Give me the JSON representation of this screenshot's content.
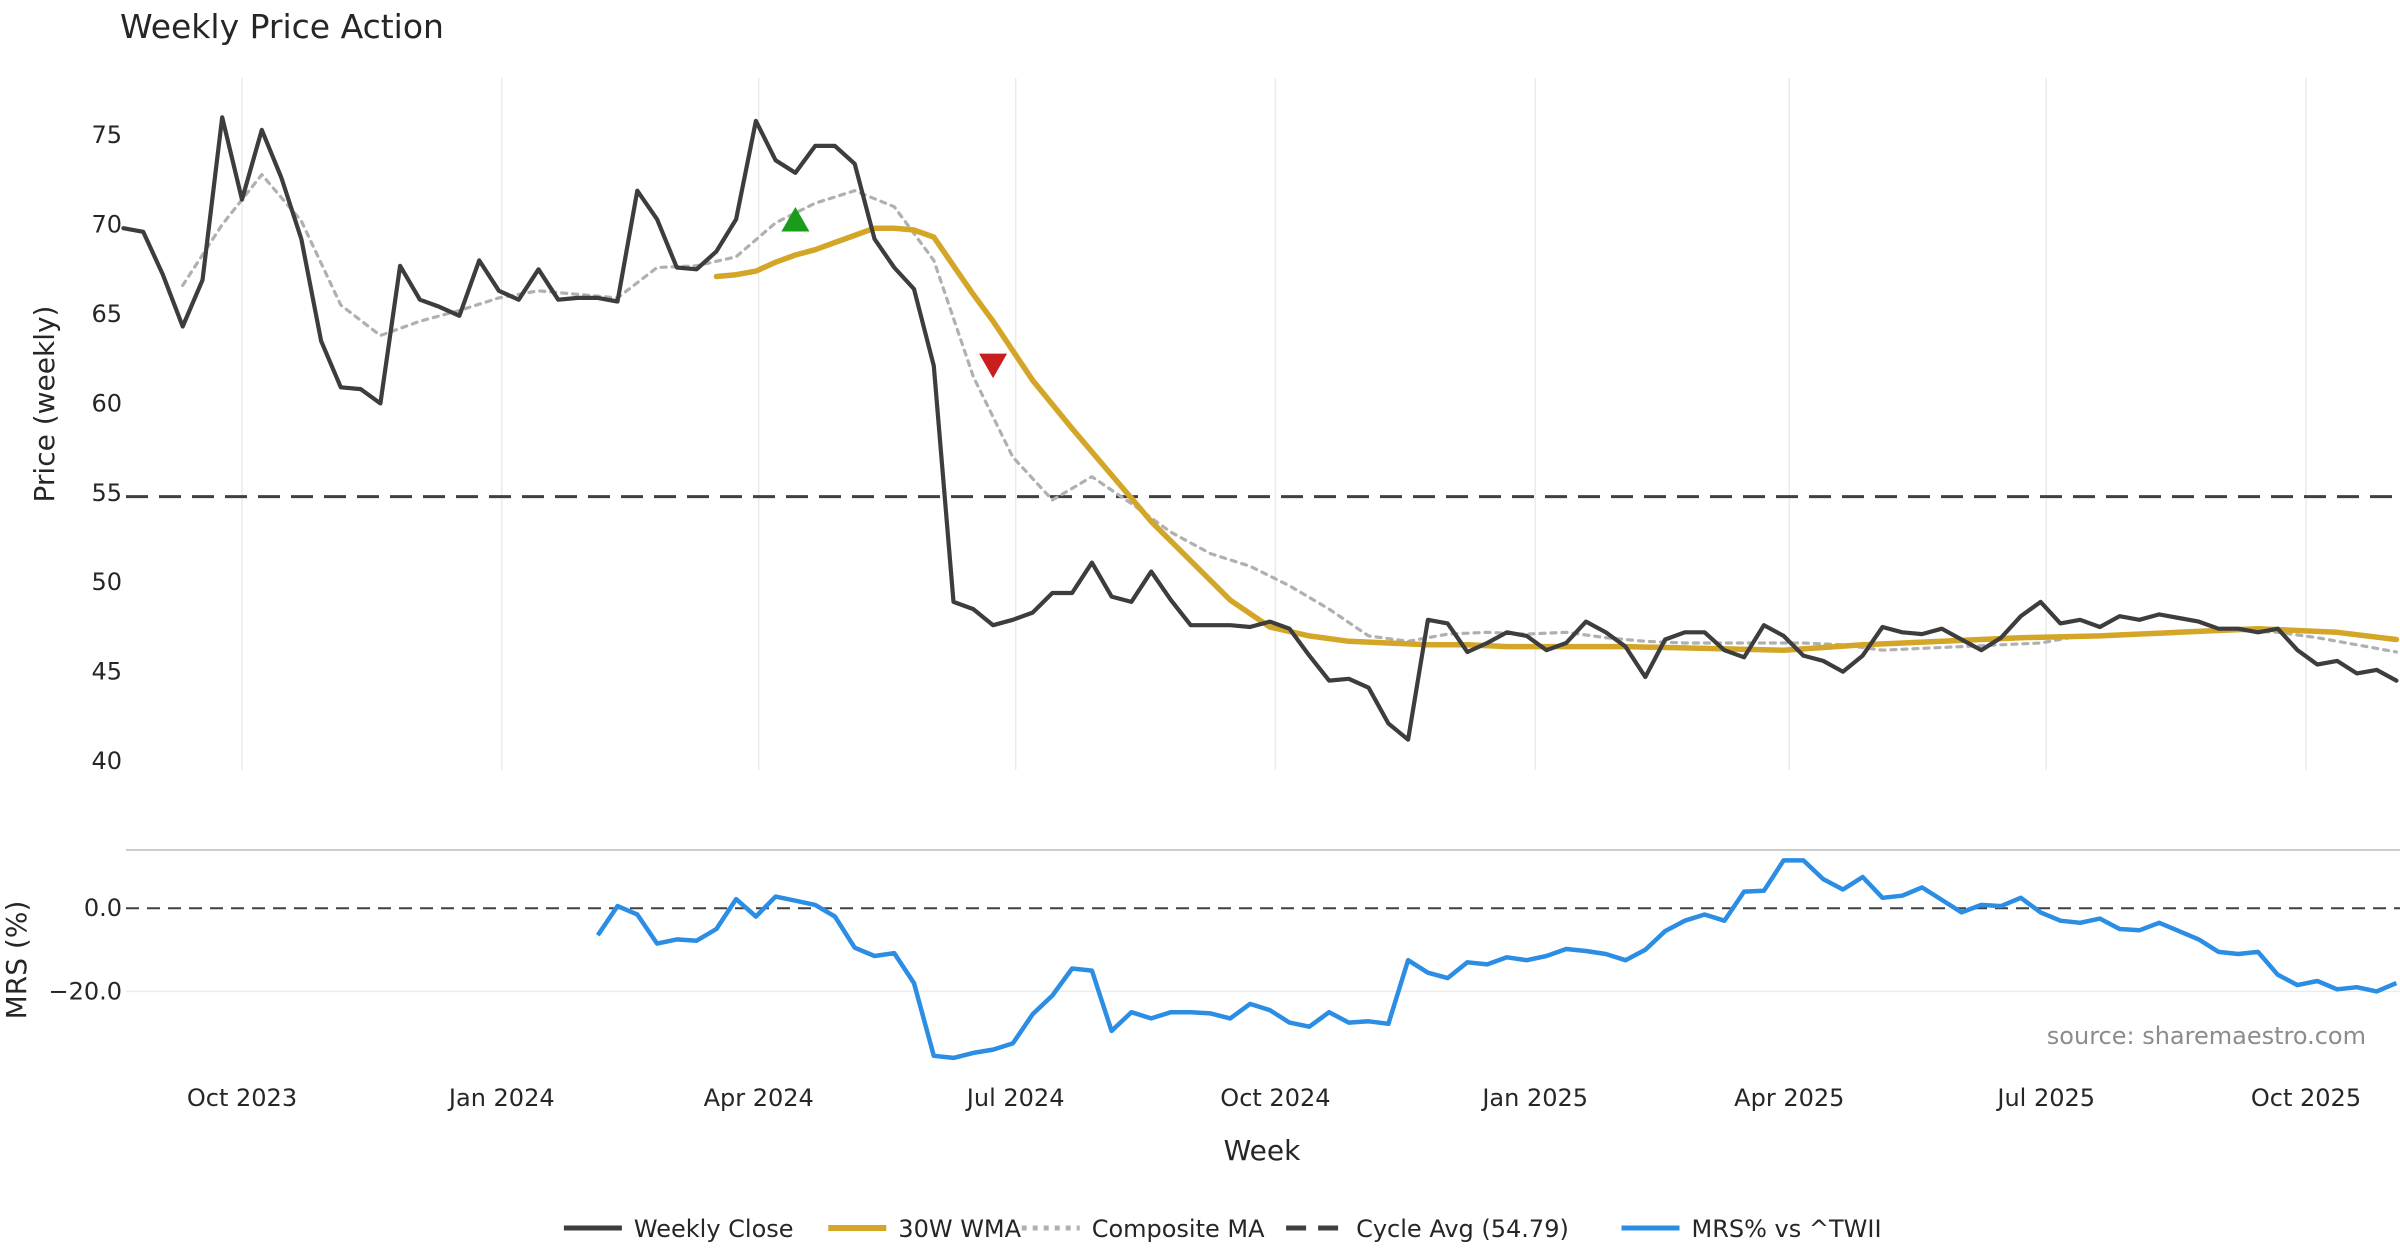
{
  "chart_data": [
    {
      "panel": "price",
      "type": "line",
      "title": "Weekly Price Action",
      "ylabel": "Price (weekly)",
      "ylim": [
        39.5,
        78.2
      ],
      "yticks": [
        40,
        45,
        50,
        55,
        60,
        65,
        70,
        75
      ],
      "grid": "vertical",
      "cycle_avg": 54.79,
      "series": [
        {
          "name": "Weekly Close",
          "color": "#3d3d3d",
          "style": "solid",
          "x": [
            "2023-08-20",
            "2023-08-27",
            "2023-09-03",
            "2023-09-10",
            "2023-09-17",
            "2023-09-24",
            "2023-10-01",
            "2023-10-08",
            "2023-10-15",
            "2023-10-22",
            "2023-10-29",
            "2023-11-05",
            "2023-11-12",
            "2023-11-19",
            "2023-11-26",
            "2023-12-03",
            "2023-12-10",
            "2023-12-17",
            "2023-12-24",
            "2023-12-31",
            "2024-01-07",
            "2024-01-14",
            "2024-01-21",
            "2024-01-28",
            "2024-02-04",
            "2024-02-11",
            "2024-02-18",
            "2024-02-25",
            "2024-03-03",
            "2024-03-10",
            "2024-03-17",
            "2024-03-24",
            "2024-03-31",
            "2024-04-07",
            "2024-04-14",
            "2024-04-21",
            "2024-04-28",
            "2024-05-05",
            "2024-05-12",
            "2024-05-19",
            "2024-05-26",
            "2024-06-02",
            "2024-06-09",
            "2024-06-16",
            "2024-06-23",
            "2024-06-30",
            "2024-07-07",
            "2024-07-14",
            "2024-07-21",
            "2024-07-28",
            "2024-08-04",
            "2024-08-11",
            "2024-08-18",
            "2024-08-25",
            "2024-09-01",
            "2024-09-08",
            "2024-09-15",
            "2024-09-22",
            "2024-09-29",
            "2024-10-06",
            "2024-10-13",
            "2024-10-20",
            "2024-10-27",
            "2024-11-03",
            "2024-11-10",
            "2024-11-17",
            "2024-11-24",
            "2024-12-01",
            "2024-12-08",
            "2024-12-15",
            "2024-12-22",
            "2024-12-29",
            "2025-01-05",
            "2025-01-12",
            "2025-01-19",
            "2025-01-26",
            "2025-02-02",
            "2025-02-09",
            "2025-02-16",
            "2025-02-23",
            "2025-03-02",
            "2025-03-09",
            "2025-03-16",
            "2025-03-23",
            "2025-03-30",
            "2025-04-06",
            "2025-04-13",
            "2025-04-20",
            "2025-04-27",
            "2025-05-04",
            "2025-05-11",
            "2025-05-18",
            "2025-05-25",
            "2025-06-01",
            "2025-06-08",
            "2025-06-15",
            "2025-06-22",
            "2025-06-29",
            "2025-07-06",
            "2025-07-13",
            "2025-07-20",
            "2025-07-27",
            "2025-08-03",
            "2025-08-10",
            "2025-08-17",
            "2025-08-24",
            "2025-08-31",
            "2025-09-07",
            "2025-09-14",
            "2025-09-21",
            "2025-09-28",
            "2025-10-05",
            "2025-10-12",
            "2025-10-19",
            "2025-10-26",
            "2025-11-02"
          ],
          "values": [
            69.8,
            69.6,
            67.2,
            64.3,
            66.9,
            76.0,
            71.4,
            75.3,
            72.6,
            69.2,
            63.5,
            60.9,
            60.8,
            60.0,
            67.7,
            65.8,
            65.4,
            64.9,
            68.0,
            66.3,
            65.8,
            67.5,
            65.8,
            65.9,
            65.9,
            65.7,
            71.9,
            70.3,
            67.6,
            67.5,
            68.5,
            70.3,
            75.8,
            73.6,
            72.9,
            74.4,
            74.4,
            73.4,
            69.2,
            67.6,
            66.4,
            62.1,
            48.9,
            48.5,
            47.6,
            47.9,
            48.3,
            49.4,
            49.4,
            51.1,
            49.2,
            48.9,
            50.6,
            49.0,
            47.6,
            47.6,
            47.6,
            47.5,
            47.8,
            47.4,
            45.9,
            44.5,
            44.6,
            44.1,
            42.1,
            41.2,
            47.9,
            47.7,
            46.1,
            46.6,
            47.2,
            47.0,
            46.2,
            46.6,
            47.8,
            47.2,
            46.4,
            44.7,
            46.8,
            47.2,
            47.2,
            46.2,
            45.8,
            47.6,
            47.0,
            45.9,
            45.6,
            45.0,
            45.9,
            47.5,
            47.2,
            47.1,
            47.4,
            46.8,
            46.2,
            46.9,
            48.1,
            48.9,
            47.7,
            47.9,
            47.5,
            48.1,
            47.9,
            48.2,
            48.0,
            47.8,
            47.4,
            47.4,
            47.2,
            47.4,
            46.2,
            45.4,
            45.6,
            44.9,
            45.1,
            44.5
          ]
        },
        {
          "name": "30W WMA",
          "color": "#d4a628",
          "style": "solid",
          "x": [
            "2024-03-17",
            "2024-03-24",
            "2024-03-31",
            "2024-04-07",
            "2024-04-14",
            "2024-04-21",
            "2024-04-28",
            "2024-05-05",
            "2024-05-12",
            "2024-05-19",
            "2024-05-26",
            "2024-06-02",
            "2024-06-09",
            "2024-06-16",
            "2024-06-23",
            "2024-07-07",
            "2024-07-21",
            "2024-08-04",
            "2024-08-18",
            "2024-09-01",
            "2024-09-15",
            "2024-09-29",
            "2024-10-13",
            "2024-10-27",
            "2024-11-10",
            "2024-11-24",
            "2024-12-08",
            "2024-12-22",
            "2025-01-05",
            "2025-02-02",
            "2025-03-02",
            "2025-03-30",
            "2025-04-27",
            "2025-05-25",
            "2025-06-22",
            "2025-07-20",
            "2025-08-17",
            "2025-09-14",
            "2025-10-12",
            "2025-11-02"
          ],
          "values": [
            67.1,
            67.2,
            67.4,
            67.9,
            68.3,
            68.6,
            69.0,
            69.4,
            69.8,
            69.8,
            69.7,
            69.3,
            67.7,
            66.1,
            64.6,
            61.3,
            58.6,
            56.0,
            53.4,
            51.2,
            49.0,
            47.5,
            47.0,
            46.7,
            46.6,
            46.5,
            46.5,
            46.4,
            46.4,
            46.4,
            46.3,
            46.2,
            46.5,
            46.7,
            46.9,
            47.0,
            47.2,
            47.4,
            47.2,
            46.8
          ]
        },
        {
          "name": "Composite MA",
          "color": "#b0b0b0",
          "style": "dotted",
          "x": [
            "2023-09-10",
            "2023-09-24",
            "2023-10-08",
            "2023-10-22",
            "2023-11-05",
            "2023-11-19",
            "2023-12-03",
            "2023-12-17",
            "2023-12-31",
            "2024-01-14",
            "2024-01-28",
            "2024-02-11",
            "2024-02-25",
            "2024-03-10",
            "2024-03-24",
            "2024-04-07",
            "2024-04-21",
            "2024-05-05",
            "2024-05-19",
            "2024-06-02",
            "2024-06-16",
            "2024-06-30",
            "2024-07-14",
            "2024-07-28",
            "2024-08-11",
            "2024-08-25",
            "2024-09-08",
            "2024-09-22",
            "2024-10-06",
            "2024-10-20",
            "2024-11-03",
            "2024-11-17",
            "2024-12-01",
            "2024-12-15",
            "2024-12-29",
            "2025-01-12",
            "2025-01-26",
            "2025-02-09",
            "2025-02-23",
            "2025-03-09",
            "2025-03-23",
            "2025-04-06",
            "2025-04-20",
            "2025-05-04",
            "2025-05-18",
            "2025-06-01",
            "2025-06-15",
            "2025-06-29",
            "2025-07-13",
            "2025-07-27",
            "2025-08-10",
            "2025-08-24",
            "2025-09-07",
            "2025-09-21",
            "2025-10-05",
            "2025-10-19",
            "2025-11-02"
          ],
          "values": [
            66.6,
            70.0,
            72.8,
            70.2,
            65.5,
            63.8,
            64.6,
            65.2,
            65.9,
            66.3,
            66.1,
            65.9,
            67.6,
            67.7,
            68.2,
            70.1,
            71.2,
            71.9,
            71.0,
            68.0,
            61.5,
            57.0,
            54.6,
            55.9,
            54.4,
            52.8,
            51.6,
            50.9,
            49.8,
            48.5,
            47.0,
            46.7,
            47.1,
            47.2,
            47.1,
            47.2,
            46.9,
            46.7,
            46.6,
            46.6,
            46.6,
            46.6,
            46.5,
            46.2,
            46.3,
            46.4,
            46.5,
            46.6,
            47.0,
            47.1,
            47.2,
            47.3,
            47.3,
            47.2,
            46.9,
            46.5,
            46.1
          ]
        },
        {
          "name": "Cycle Avg (54.79)",
          "color": "#404040",
          "style": "dashed"
        }
      ],
      "markers": [
        {
          "type": "buy",
          "shape": "triangle-up",
          "color": "#1a9c1a",
          "x": "2024-04-14",
          "y": 70.2
        },
        {
          "type": "sell",
          "shape": "triangle-down",
          "color": "#c81e1e",
          "x": "2024-06-23",
          "y": 62.2
        }
      ]
    },
    {
      "panel": "mrs",
      "type": "line",
      "ylabel": "MRS (%)",
      "xlabel": "Week",
      "ylim": [
        -36.5,
        14
      ],
      "yticks": [
        0.0,
        -20.0
      ],
      "ytick_labels": [
        "0.0",
        "−20.0"
      ],
      "xticks": [
        "2023-10-01",
        "2024-01-01",
        "2024-04-01",
        "2024-07-01",
        "2024-10-01",
        "2025-01-01",
        "2025-04-01",
        "2025-07-01",
        "2025-10-01"
      ],
      "xtick_labels": [
        "Oct 2023",
        "Jan 2024",
        "Apr 2024",
        "Jul 2024",
        "Oct 2024",
        "Jan 2025",
        "Apr 2025",
        "Jul 2025",
        "Oct 2025"
      ],
      "source": "source: sharemaestro.com",
      "series": [
        {
          "name": "MRS% vs ^TWII",
          "color": "#2b8de3",
          "style": "solid",
          "x": [
            "2024-02-04",
            "2024-02-11",
            "2024-02-18",
            "2024-02-25",
            "2024-03-03",
            "2024-03-10",
            "2024-03-17",
            "2024-03-24",
            "2024-03-31",
            "2024-04-07",
            "2024-04-14",
            "2024-04-21",
            "2024-04-28",
            "2024-05-05",
            "2024-05-12",
            "2024-05-19",
            "2024-05-26",
            "2024-06-02",
            "2024-06-09",
            "2024-06-16",
            "2024-06-23",
            "2024-06-30",
            "2024-07-07",
            "2024-07-14",
            "2024-07-21",
            "2024-07-28",
            "2024-08-04",
            "2024-08-11",
            "2024-08-18",
            "2024-08-25",
            "2024-09-01",
            "2024-09-08",
            "2024-09-15",
            "2024-09-22",
            "2024-09-29",
            "2024-10-06",
            "2024-10-13",
            "2024-10-20",
            "2024-10-27",
            "2024-11-03",
            "2024-11-10",
            "2024-11-17",
            "2024-11-24",
            "2024-12-01",
            "2024-12-08",
            "2024-12-15",
            "2024-12-22",
            "2024-12-29",
            "2025-01-05",
            "2025-01-12",
            "2025-01-19",
            "2025-01-26",
            "2025-02-02",
            "2025-02-09",
            "2025-02-16",
            "2025-02-23",
            "2025-03-02",
            "2025-03-09",
            "2025-03-16",
            "2025-03-23",
            "2025-03-30",
            "2025-04-06",
            "2025-04-13",
            "2025-04-20",
            "2025-04-27",
            "2025-05-04",
            "2025-05-11",
            "2025-05-18",
            "2025-05-25",
            "2025-06-01",
            "2025-06-08",
            "2025-06-15",
            "2025-06-22",
            "2025-06-29",
            "2025-07-06",
            "2025-07-13",
            "2025-07-20",
            "2025-07-27",
            "2025-08-03",
            "2025-08-10",
            "2025-08-17",
            "2025-08-24",
            "2025-08-31",
            "2025-09-07",
            "2025-09-14",
            "2025-09-21",
            "2025-09-28",
            "2025-10-05",
            "2025-10-12",
            "2025-10-19",
            "2025-10-26",
            "2025-11-02"
          ],
          "values": [
            -6.5,
            0.5,
            -1.5,
            -8.5,
            -7.5,
            -7.8,
            -5.0,
            2.2,
            -2.0,
            2.8,
            1.8,
            0.8,
            -2.0,
            -9.5,
            -11.5,
            -10.8,
            -18.0,
            -35.5,
            -36.0,
            -34.8,
            -34.0,
            -32.5,
            -25.5,
            -21.0,
            -14.5,
            -15.0,
            -29.5,
            -25.0,
            -26.5,
            -25.0,
            -25.0,
            -25.3,
            -26.5,
            -23.0,
            -24.5,
            -27.5,
            -28.5,
            -25.0,
            -27.5,
            -27.2,
            -27.8,
            -12.5,
            -15.5,
            -16.8,
            -13.0,
            -13.5,
            -11.8,
            -12.5,
            -11.5,
            -9.8,
            -10.3,
            -11.0,
            -12.5,
            -10.0,
            -5.5,
            -3.0,
            -1.5,
            -3.0,
            4.0,
            4.2,
            11.5,
            11.5,
            7.0,
            4.5,
            7.5,
            2.5,
            3.0,
            5.0,
            2.0,
            -1.0,
            0.8,
            0.5,
            2.5,
            -1.0,
            -3.0,
            -3.5,
            -2.5,
            -5.0,
            -5.3,
            -3.5,
            -5.5,
            -7.5,
            -10.5,
            -11.0,
            -10.5,
            -16.0,
            -18.5,
            -17.5,
            -19.5,
            -19.0,
            -20.0,
            -18.0
          ]
        }
      ]
    }
  ]
}
